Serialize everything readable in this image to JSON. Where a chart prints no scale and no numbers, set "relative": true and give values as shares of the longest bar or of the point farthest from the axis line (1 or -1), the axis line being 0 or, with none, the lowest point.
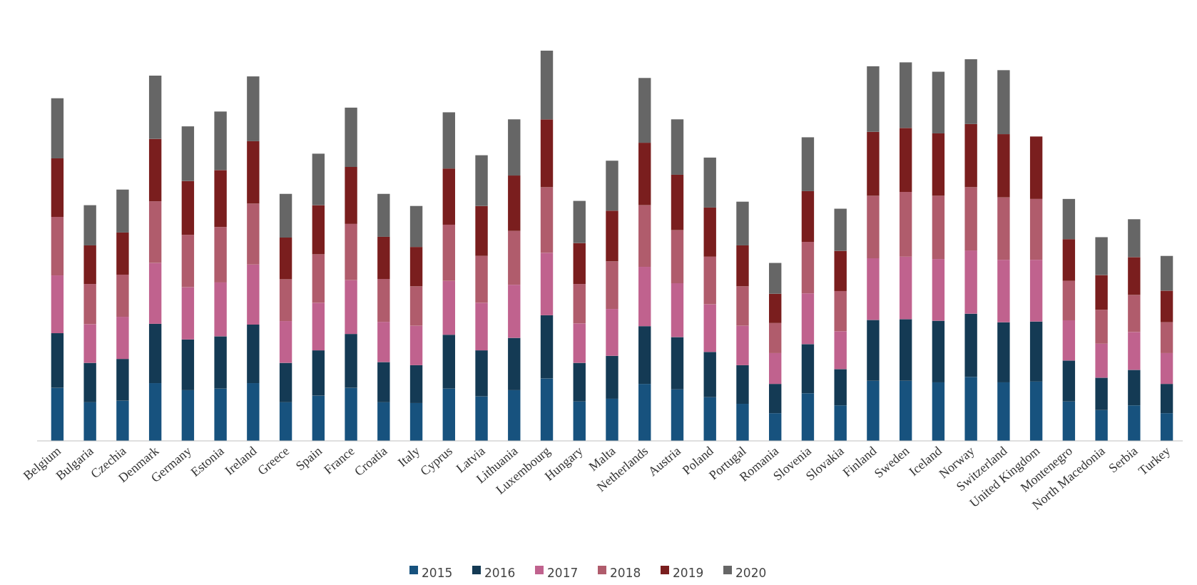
{
  "chart_data": {
    "type": "bar",
    "stacked": true,
    "relative": true,
    "legend": "bottom",
    "categories": [
      "Belgium",
      "Bulgaria",
      "Czechia",
      "Denmark",
      "Germany",
      "Estonia",
      "Ireland",
      "Greece",
      "Spain",
      "France",
      "Croatia",
      "Italy",
      "Cyprus",
      "Latvia",
      "Lithuania",
      "Luxembourg",
      "Hungary",
      "Malta",
      "Netherlands",
      "Austria",
      "Poland",
      "Portugal",
      "Romania",
      "Slovenia",
      "Slovakia",
      "Finland",
      "Sweden",
      "Iceland",
      "Norway",
      "Switzerland",
      "United Kingdom",
      "Montenegro",
      "North Macedonia",
      "Serbia",
      "Turkey"
    ],
    "series": [
      {
        "name": "2015",
        "color": "#17527e",
        "values": [
          0.136,
          0.099,
          0.103,
          0.148,
          0.13,
          0.134,
          0.148,
          0.099,
          0.116,
          0.136,
          0.099,
          0.097,
          0.134,
          0.114,
          0.13,
          0.16,
          0.101,
          0.108,
          0.146,
          0.132,
          0.112,
          0.095,
          0.071,
          0.122,
          0.091,
          0.154,
          0.154,
          0.15,
          0.164,
          0.15,
          0.152,
          0.101,
          0.079,
          0.091,
          0.071
        ]
      },
      {
        "name": "2016",
        "color": "#143a54",
        "values": [
          0.14,
          0.101,
          0.107,
          0.152,
          0.13,
          0.134,
          0.15,
          0.101,
          0.116,
          0.138,
          0.103,
          0.097,
          0.138,
          0.118,
          0.134,
          0.162,
          0.099,
          0.11,
          0.148,
          0.134,
          0.116,
          0.099,
          0.075,
          0.126,
          0.093,
          0.156,
          0.158,
          0.158,
          0.162,
          0.154,
          0.154,
          0.105,
          0.083,
          0.091,
          0.075
        ]
      },
      {
        "name": "2017",
        "color": "#c0628e",
        "values": [
          0.148,
          0.099,
          0.108,
          0.156,
          0.134,
          0.138,
          0.154,
          0.107,
          0.122,
          0.138,
          0.103,
          0.101,
          0.138,
          0.122,
          0.136,
          0.16,
          0.101,
          0.12,
          0.152,
          0.138,
          0.122,
          0.101,
          0.079,
          0.13,
          0.097,
          0.158,
          0.16,
          0.158,
          0.162,
          0.16,
          0.158,
          0.103,
          0.087,
          0.097,
          0.079
        ]
      },
      {
        "name": "2018",
        "color": "#b05c6c",
        "values": [
          0.15,
          0.103,
          0.108,
          0.158,
          0.134,
          0.142,
          0.156,
          0.107,
          0.124,
          0.144,
          0.11,
          0.101,
          0.144,
          0.12,
          0.138,
          0.168,
          0.101,
          0.122,
          0.158,
          0.136,
          0.122,
          0.101,
          0.077,
          0.132,
          0.103,
          0.16,
          0.166,
          0.162,
          0.162,
          0.16,
          0.156,
          0.101,
          0.087,
          0.095,
          0.079
        ]
      },
      {
        "name": "2019",
        "color": "#7a1e1e",
        "values": [
          0.15,
          0.099,
          0.108,
          0.16,
          0.138,
          0.146,
          0.16,
          0.107,
          0.126,
          0.146,
          0.108,
          0.101,
          0.144,
          0.128,
          0.142,
          0.174,
          0.105,
          0.13,
          0.16,
          0.142,
          0.126,
          0.105,
          0.075,
          0.13,
          0.103,
          0.164,
          0.164,
          0.16,
          0.162,
          0.162,
          0.16,
          0.107,
          0.089,
          0.097,
          0.081
        ]
      },
      {
        "name": "2020",
        "color": "#666666",
        "values": [
          0.154,
          0.103,
          0.11,
          0.162,
          0.14,
          0.15,
          0.166,
          0.112,
          0.132,
          0.152,
          0.11,
          0.105,
          0.144,
          0.13,
          0.144,
          0.176,
          0.108,
          0.128,
          0.166,
          0.142,
          0.128,
          0.112,
          0.079,
          0.138,
          0.108,
          0.168,
          0.168,
          0.158,
          0.166,
          0.164,
          null,
          0.103,
          0.097,
          0.097,
          0.089
        ]
      }
    ]
  }
}
